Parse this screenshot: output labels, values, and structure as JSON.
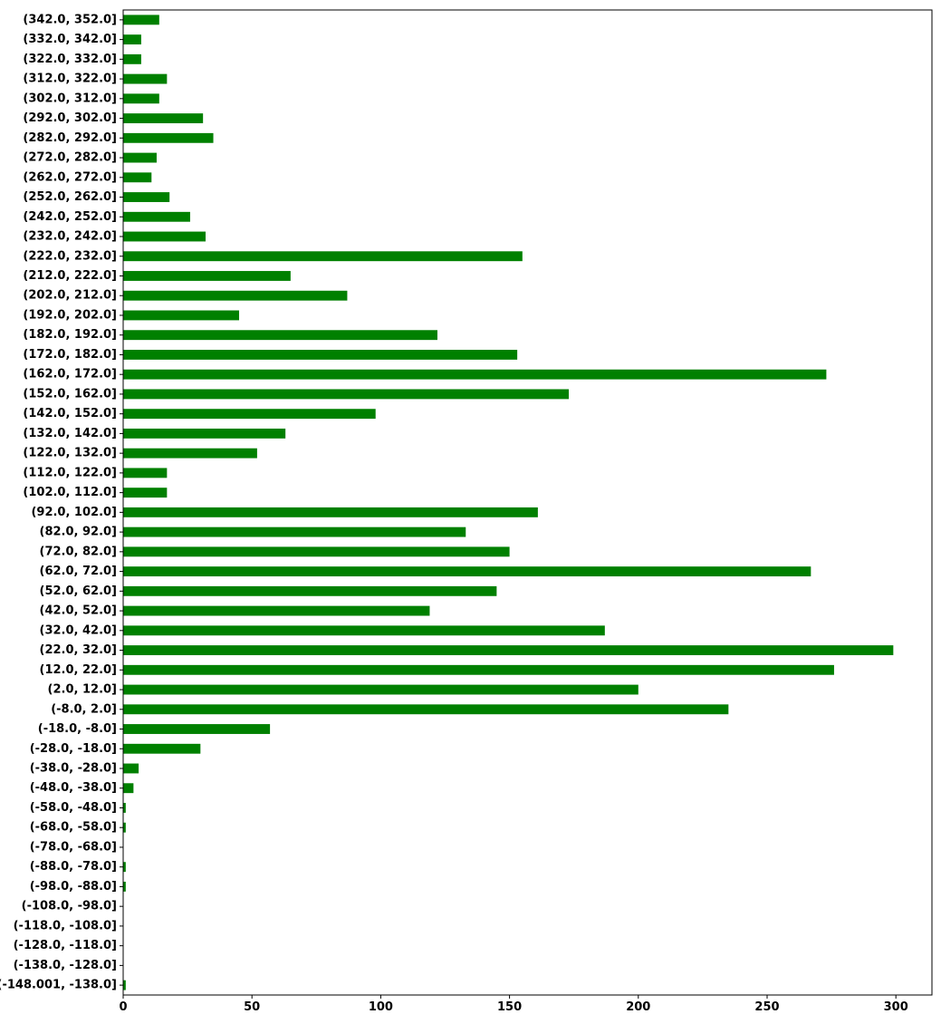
{
  "chart_data": {
    "type": "bar",
    "orientation": "horizontal",
    "title": "",
    "xlabel": "",
    "ylabel": "",
    "xlim": [
      0,
      314
    ],
    "xticks": [
      0,
      50,
      100,
      150,
      200,
      250,
      300
    ],
    "grid": false,
    "legend": "none",
    "bar_color": "#008000",
    "categories": [
      "(-148.001, -138.0]",
      "(-138.0, -128.0]",
      "(-128.0, -118.0]",
      "(-118.0, -108.0]",
      "(-108.0, -98.0]",
      "(-98.0, -88.0]",
      "(-88.0, -78.0]",
      "(-78.0, -68.0]",
      "(-68.0, -58.0]",
      "(-58.0, -48.0]",
      "(-48.0, -38.0]",
      "(-38.0, -28.0]",
      "(-28.0, -18.0]",
      "(-18.0, -8.0]",
      "(-8.0, 2.0]",
      "(2.0, 12.0]",
      "(12.0, 22.0]",
      "(22.0, 32.0]",
      "(32.0, 42.0]",
      "(42.0, 52.0]",
      "(52.0, 62.0]",
      "(62.0, 72.0]",
      "(72.0, 82.0]",
      "(82.0, 92.0]",
      "(92.0, 102.0]",
      "(102.0, 112.0]",
      "(112.0, 122.0]",
      "(122.0, 132.0]",
      "(132.0, 142.0]",
      "(142.0, 152.0]",
      "(152.0, 162.0]",
      "(162.0, 172.0]",
      "(172.0, 182.0]",
      "(182.0, 192.0]",
      "(192.0, 202.0]",
      "(202.0, 212.0]",
      "(212.0, 222.0]",
      "(222.0, 232.0]",
      "(232.0, 242.0]",
      "(242.0, 252.0]",
      "(252.0, 262.0]",
      "(262.0, 272.0]",
      "(272.0, 282.0]",
      "(282.0, 292.0]",
      "(292.0, 302.0]",
      "(302.0, 312.0]",
      "(312.0, 322.0]",
      "(322.0, 332.0]",
      "(332.0, 342.0]",
      "(342.0, 352.0]"
    ],
    "values": [
      1,
      0,
      0,
      0,
      0,
      1,
      1,
      0,
      1,
      1,
      4,
      6,
      30,
      57,
      235,
      200,
      276,
      299,
      187,
      119,
      145,
      267,
      150,
      133,
      161,
      17,
      17,
      52,
      63,
      98,
      173,
      273,
      153,
      122,
      45,
      87,
      65,
      155,
      32,
      26,
      18,
      11,
      13,
      35,
      31,
      14,
      17,
      7,
      7,
      14
    ]
  }
}
